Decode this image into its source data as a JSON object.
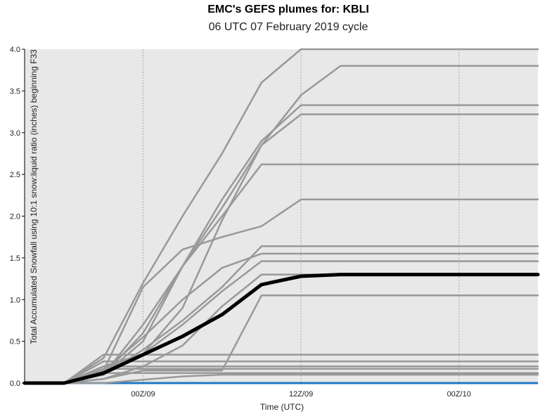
{
  "chart_data": {
    "type": "line",
    "title": "EMC's GEFS plumes for: KBLI",
    "subtitle": "06 UTC 07 February 2019 cycle",
    "xlabel": "Time (UTC)",
    "ylabel": "Total Accumulated Snowfall using 10:1 snow:liquid ratio (inches) beginning F33",
    "ylim": [
      0,
      4.0
    ],
    "xlim_hours": [
      -15,
      50
    ],
    "yticks": [
      0.0,
      0.5,
      1.0,
      1.5,
      2.0,
      2.5,
      3.0,
      3.5,
      4.0
    ],
    "ytick_labels": [
      "0.0",
      "0.5",
      "1.0",
      "1.5",
      "2.0",
      "2.5",
      "3.0",
      "3.5",
      "4.0"
    ],
    "xtick_hours": [
      0,
      20,
      40
    ],
    "xtick_labels": [
      "00Z/09",
      "12Z/09",
      "00Z/10"
    ],
    "grid": "vertical dotted at x ticks",
    "colors": {
      "background": "#e8e8e8",
      "member": "#999999",
      "mean": "#000000",
      "zero_line": "#1f77c4",
      "grid": "#aaaaaa"
    },
    "series": [
      {
        "role": "member",
        "x": [
          -15,
          -10,
          -5,
          0,
          5,
          10,
          15,
          20,
          50
        ],
        "y": [
          0,
          0,
          0.3,
          1.2,
          2.0,
          2.75,
          3.6,
          4.0,
          4.0
        ]
      },
      {
        "role": "member",
        "x": [
          -15,
          -10,
          -5,
          0,
          5,
          10,
          15,
          20,
          25,
          50
        ],
        "y": [
          0,
          0,
          0.1,
          0.5,
          1.4,
          2.1,
          2.85,
          3.45,
          3.8,
          3.8
        ]
      },
      {
        "role": "member",
        "x": [
          -15,
          -10,
          -5,
          0,
          5,
          10,
          15,
          20,
          50
        ],
        "y": [
          0,
          0,
          0.1,
          0.6,
          1.4,
          2.2,
          2.9,
          3.33,
          3.33
        ]
      },
      {
        "role": "member",
        "x": [
          -15,
          -10,
          -5,
          0,
          5,
          10,
          15,
          20,
          50
        ],
        "y": [
          0,
          0,
          0.15,
          0.35,
          0.9,
          1.95,
          2.85,
          3.22,
          3.22
        ]
      },
      {
        "role": "member",
        "x": [
          -15,
          -10,
          -5,
          0,
          5,
          10,
          15,
          20,
          50
        ],
        "y": [
          0,
          0,
          0.1,
          0.7,
          1.4,
          2.0,
          2.62,
          2.62,
          2.62
        ]
      },
      {
        "role": "member",
        "x": [
          -15,
          -10,
          -5,
          0,
          5,
          10,
          15,
          20,
          50
        ],
        "y": [
          0,
          0,
          0.15,
          1.15,
          1.6,
          1.75,
          1.88,
          2.2,
          2.2
        ]
      },
      {
        "role": "member",
        "x": [
          -15,
          -10,
          -5,
          0,
          5,
          10,
          15,
          20,
          50
        ],
        "y": [
          0,
          0,
          0.1,
          0.4,
          0.75,
          1.15,
          1.64,
          1.64,
          1.64
        ]
      },
      {
        "role": "member",
        "x": [
          -15,
          -10,
          -5,
          0,
          5,
          10,
          15,
          20,
          50
        ],
        "y": [
          0,
          0,
          0.15,
          0.55,
          1.0,
          1.38,
          1.55,
          1.55,
          1.55
        ]
      },
      {
        "role": "member",
        "x": [
          -15,
          -10,
          -5,
          0,
          5,
          10,
          15,
          20,
          50
        ],
        "y": [
          0,
          0,
          0.2,
          0.35,
          0.7,
          1.1,
          1.46,
          1.46,
          1.46
        ]
      },
      {
        "role": "member",
        "x": [
          -15,
          -10,
          -5,
          0,
          5,
          10,
          15,
          20,
          50
        ],
        "y": [
          0,
          0,
          0.05,
          0.2,
          0.45,
          0.92,
          1.3,
          1.3,
          1.3
        ]
      },
      {
        "role": "member",
        "x": [
          -15,
          -10,
          -5,
          0,
          5,
          10,
          15,
          20,
          50
        ],
        "y": [
          0,
          0,
          0.05,
          0.15,
          0.15,
          0.15,
          1.05,
          1.05,
          1.05
        ]
      },
      {
        "role": "member",
        "x": [
          -15,
          -10,
          -5,
          0,
          5,
          10,
          15,
          20,
          50
        ],
        "y": [
          0,
          0,
          0.34,
          0.34,
          0.34,
          0.34,
          0.34,
          0.34,
          0.34
        ]
      },
      {
        "role": "member",
        "x": [
          -15,
          -10,
          -5,
          0,
          5,
          10,
          15,
          20,
          50
        ],
        "y": [
          0,
          0,
          0.26,
          0.26,
          0.26,
          0.26,
          0.26,
          0.26,
          0.26
        ]
      },
      {
        "role": "member",
        "x": [
          -15,
          -10,
          -5,
          0,
          5,
          10,
          15,
          20,
          50
        ],
        "y": [
          0,
          0,
          0.2,
          0.2,
          0.2,
          0.2,
          0.2,
          0.2,
          0.2
        ]
      },
      {
        "role": "member",
        "x": [
          -15,
          -10,
          -5,
          0,
          5,
          10,
          15,
          20,
          50
        ],
        "y": [
          0,
          0,
          0.17,
          0.17,
          0.17,
          0.17,
          0.17,
          0.17,
          0.17
        ]
      },
      {
        "role": "member",
        "x": [
          -15,
          -10,
          -5,
          0,
          5,
          10,
          15,
          20,
          50
        ],
        "y": [
          0,
          0,
          0.12,
          0.12,
          0.12,
          0.12,
          0.12,
          0.12,
          0.12
        ]
      },
      {
        "role": "member",
        "x": [
          -15,
          -10,
          -5,
          0,
          5,
          10,
          15,
          20,
          50
        ],
        "y": [
          0,
          0,
          0,
          0.04,
          0.08,
          0.1,
          0.1,
          0.1,
          0.1
        ]
      },
      {
        "role": "mean",
        "x": [
          -15,
          -10,
          -5,
          0,
          5,
          10,
          15,
          20,
          25,
          50
        ],
        "y": [
          0,
          0,
          0.12,
          0.34,
          0.56,
          0.82,
          1.18,
          1.28,
          1.3,
          1.3
        ]
      }
    ]
  }
}
